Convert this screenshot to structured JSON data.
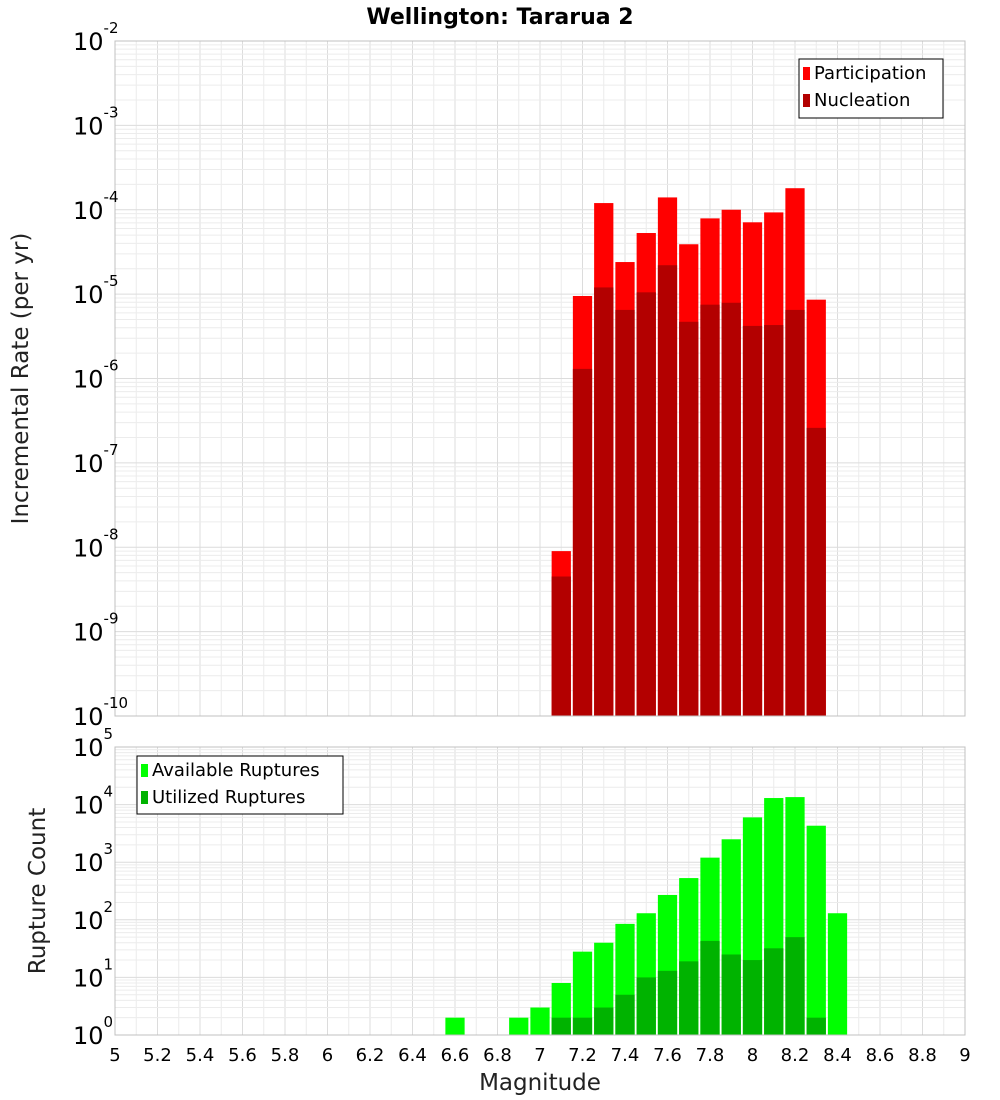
{
  "title": "Wellington: Tararua 2",
  "x_axis_label": "Magnitude",
  "chart_data": [
    {
      "type": "bar",
      "name": "rates",
      "ylabel": "Incremental Rate (per yr)",
      "xlim": [
        5,
        9
      ],
      "ylim_exp": [
        -10,
        -2
      ],
      "yscale": "log",
      "legend_position": "top-right",
      "grid": true,
      "x": [
        7.1,
        7.2,
        7.3,
        7.4,
        7.5,
        7.6,
        7.7,
        7.8,
        7.9,
        8.0,
        8.1,
        8.2,
        8.3
      ],
      "series": [
        {
          "name": "Participation",
          "color": "#ff0000",
          "values": [
            9e-09,
            9.5e-06,
            0.00012,
            2.4e-05,
            5.3e-05,
            0.00014,
            3.9e-05,
            7.9e-05,
            0.0001,
            7.1e-05,
            9.3e-05,
            0.00018,
            8.6e-06
          ]
        },
        {
          "name": "Nucleation",
          "color": "#b30000",
          "values": [
            4.5e-09,
            1.3e-06,
            1.2e-05,
            6.5e-06,
            1.05e-05,
            2.2e-05,
            4.7e-06,
            7.5e-06,
            7.9e-06,
            4.2e-06,
            4.3e-06,
            6.5e-06,
            2.6e-07
          ]
        }
      ]
    },
    {
      "type": "bar",
      "name": "counts",
      "ylabel": "Rupture Count",
      "xlim": [
        5,
        9
      ],
      "ylim_exp": [
        0,
        5
      ],
      "yscale": "log",
      "legend_position": "top-left",
      "grid": true,
      "x": [
        6.6,
        6.7,
        6.8,
        6.9,
        7.0,
        7.1,
        7.2,
        7.3,
        7.4,
        7.5,
        7.6,
        7.7,
        7.8,
        7.9,
        8.0,
        8.1,
        8.2,
        8.3,
        8.4
      ],
      "series": [
        {
          "name": "Available Ruptures",
          "color": "#00ff00",
          "values": [
            2,
            1,
            1,
            2,
            3,
            8,
            28,
            40,
            85,
            130,
            270,
            530,
            1200,
            2500,
            6000,
            13000,
            13500,
            4300,
            130
          ]
        },
        {
          "name": "Utilized Ruptures",
          "color": "#00b300",
          "values": [
            0,
            0,
            0,
            0,
            0,
            2,
            2,
            3,
            5,
            10,
            13,
            19,
            43,
            25,
            20,
            32,
            50,
            2,
            0
          ]
        }
      ]
    }
  ],
  "x_ticks": [
    "5",
    "5.2",
    "5.4",
    "5.6",
    "5.8",
    "6",
    "6.2",
    "6.4",
    "6.6",
    "6.8",
    "7",
    "7.2",
    "7.4",
    "7.6",
    "7.8",
    "8",
    "8.2",
    "8.4",
    "8.6",
    "8.8",
    "9"
  ]
}
